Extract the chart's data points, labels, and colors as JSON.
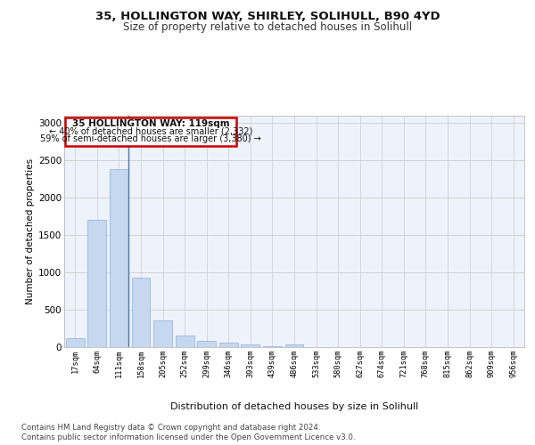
{
  "title1": "35, HOLLINGTON WAY, SHIRLEY, SOLIHULL, B90 4YD",
  "title2": "Size of property relative to detached houses in Solihull",
  "xlabel": "Distribution of detached houses by size in Solihull",
  "ylabel": "Number of detached properties",
  "footnote1": "Contains HM Land Registry data © Crown copyright and database right 2024.",
  "footnote2": "Contains public sector information licensed under the Open Government Licence v3.0.",
  "annotation_title": "35 HOLLINGTON WAY: 119sqm",
  "annotation_line2": "← 40% of detached houses are smaller (2,332)",
  "annotation_line3": "59% of semi-detached houses are larger (3,380) →",
  "bar_labels": [
    "17sqm",
    "64sqm",
    "111sqm",
    "158sqm",
    "205sqm",
    "252sqm",
    "299sqm",
    "346sqm",
    "393sqm",
    "439sqm",
    "486sqm",
    "533sqm",
    "580sqm",
    "627sqm",
    "674sqm",
    "721sqm",
    "768sqm",
    "815sqm",
    "862sqm",
    "909sqm",
    "956sqm"
  ],
  "bar_values": [
    115,
    1700,
    2380,
    930,
    360,
    155,
    80,
    55,
    35,
    10,
    30,
    0,
    0,
    0,
    0,
    0,
    0,
    0,
    0,
    0,
    0
  ],
  "bar_color": "#c5d8f0",
  "bar_edge_color": "#8ab0d8",
  "highlight_bar_index": 2,
  "highlight_line_color": "#4a7aaa",
  "annotation_box_color": "#ffffff",
  "annotation_box_edge_color": "#cc0000",
  "ylim": [
    0,
    3100
  ],
  "yticks": [
    0,
    500,
    1000,
    1500,
    2000,
    2500,
    3000
  ],
  "grid_color": "#cccccc",
  "bg_color": "#eef2fa",
  "fig_bg_color": "#ffffff"
}
